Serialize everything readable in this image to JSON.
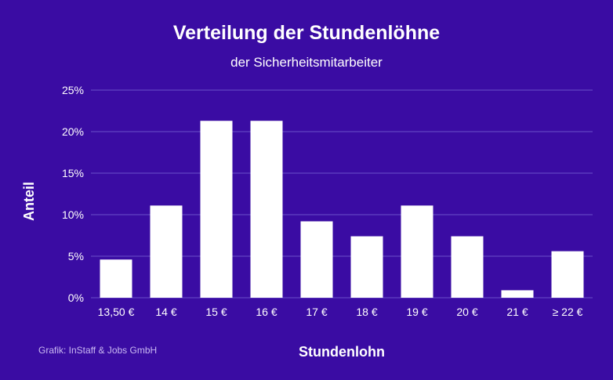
{
  "chart_data": {
    "type": "bar",
    "title": "Verteilung der Stundenlöhne",
    "subtitle": "der Sicherheitsmitarbeiter",
    "xlabel": "Stundenlohn",
    "ylabel": "Anteil",
    "categories": [
      "13,50 €",
      "14 €",
      "15 €",
      "16 €",
      "17 €",
      "18 €",
      "19 €",
      "20 €",
      "21 €",
      "≥ 22 €"
    ],
    "values": [
      4.6,
      11.1,
      21.3,
      21.3,
      9.2,
      7.4,
      11.1,
      7.4,
      0.9,
      5.6
    ],
    "ylim": [
      0,
      25
    ],
    "yticks": [
      {
        "value": 0,
        "label": "0%"
      },
      {
        "value": 5,
        "label": "5%"
      },
      {
        "value": 10,
        "label": "10%"
      },
      {
        "value": 15,
        "label": "15%"
      },
      {
        "value": 20,
        "label": "20%"
      },
      {
        "value": 25,
        "label": "25%"
      }
    ],
    "grid": true,
    "legend": "none",
    "colors": {
      "background": "#3a0ca3",
      "bar": "#ffffff",
      "grid": "#6a4fc8",
      "text": "#ffffff"
    }
  },
  "source": "Grafik: InStaff & Jobs GmbH"
}
